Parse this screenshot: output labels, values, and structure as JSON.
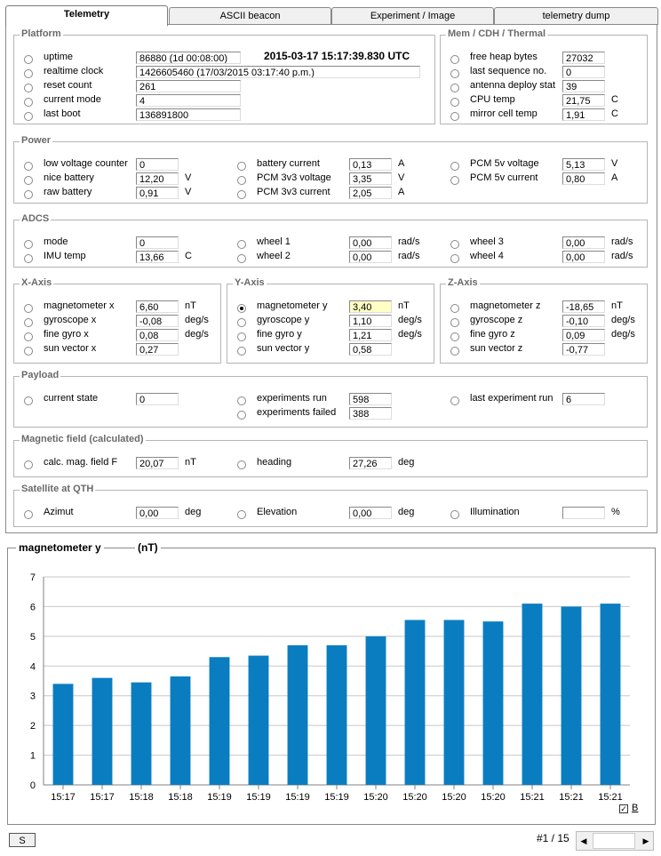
{
  "tabs": [
    "Telemetry",
    "ASCII beacon",
    "Experiment / Image",
    "telemetry dump"
  ],
  "platform": {
    "title": "Platform",
    "timestamp": "2015-03-17 15:17:39.830 UTC",
    "rows": [
      {
        "label": "uptime",
        "value": "86880  (1d 00:08:00)"
      },
      {
        "label": "realtime clock",
        "value": "1426605460  (17/03/2015 03:17:40 p.m.)"
      },
      {
        "label": "reset count",
        "value": "261"
      },
      {
        "label": "current mode",
        "value": "4"
      },
      {
        "label": "last boot",
        "value": "136891800"
      }
    ]
  },
  "mem": {
    "title": "Mem / CDH / Thermal",
    "rows": [
      {
        "label": "free heap bytes",
        "value": "27032",
        "unit": ""
      },
      {
        "label": "last sequence no.",
        "value": "0",
        "unit": ""
      },
      {
        "label": "antenna deploy stat",
        "value": "39",
        "unit": ""
      },
      {
        "label": "CPU temp",
        "value": "21,75",
        "unit": "C"
      },
      {
        "label": "mirror cell temp",
        "value": "1,91",
        "unit": "C"
      }
    ]
  },
  "power": {
    "title": "Power",
    "col1": [
      {
        "label": "low voltage counter",
        "value": "0",
        "unit": ""
      },
      {
        "label": "nice battery",
        "value": "12,20",
        "unit": "V"
      },
      {
        "label": "raw battery",
        "value": "0,91",
        "unit": "V"
      }
    ],
    "col2": [
      {
        "label": "battery current",
        "value": "0,13",
        "unit": "A"
      },
      {
        "label": "PCM 3v3 voltage",
        "value": "3,35",
        "unit": "V"
      },
      {
        "label": "PCM 3v3 current",
        "value": "2,05",
        "unit": "A"
      }
    ],
    "col3": [
      {
        "label": "PCM 5v voltage",
        "value": "5,13",
        "unit": "V"
      },
      {
        "label": "PCM 5v current",
        "value": "0,80",
        "unit": "A"
      }
    ]
  },
  "adcs": {
    "title": "ADCS",
    "col1": [
      {
        "label": "mode",
        "value": "0",
        "unit": ""
      },
      {
        "label": "IMU temp",
        "value": "13,66",
        "unit": "C"
      }
    ],
    "col2": [
      {
        "label": "wheel 1",
        "value": "0,00",
        "unit": "rad/s"
      },
      {
        "label": "wheel 2",
        "value": "0,00",
        "unit": "rad/s"
      }
    ],
    "col3": [
      {
        "label": "wheel 3",
        "value": "0,00",
        "unit": "rad/s"
      },
      {
        "label": "wheel 4",
        "value": "0,00",
        "unit": "rad/s"
      }
    ]
  },
  "xaxis": {
    "title": "X-Axis",
    "rows": [
      {
        "label": "magnetometer x",
        "value": "6,60",
        "unit": "nT"
      },
      {
        "label": "gyroscope x",
        "value": "-0,08",
        "unit": "deg/s"
      },
      {
        "label": "fine gyro x",
        "value": "0,08",
        "unit": "deg/s"
      },
      {
        "label": "sun vector x",
        "value": "0,27",
        "unit": ""
      }
    ]
  },
  "yaxis": {
    "title": "Y-Axis",
    "rows": [
      {
        "label": "magnetometer y",
        "value": "3,40",
        "unit": "nT"
      },
      {
        "label": "gyroscope y",
        "value": "1,10",
        "unit": "deg/s"
      },
      {
        "label": "fine gyro y",
        "value": "1,21",
        "unit": "deg/s"
      },
      {
        "label": "sun vector y",
        "value": "0,58",
        "unit": ""
      }
    ]
  },
  "zaxis": {
    "title": "Z-Axis",
    "rows": [
      {
        "label": "magnetometer z",
        "value": "-18,65",
        "unit": "nT"
      },
      {
        "label": "gyroscope z",
        "value": "-0,10",
        "unit": "deg/s"
      },
      {
        "label": "fine gyro z",
        "value": "0,09",
        "unit": "deg/s"
      },
      {
        "label": "sun vector z",
        "value": "-0,77",
        "unit": ""
      }
    ]
  },
  "payload": {
    "title": "Payload",
    "current_state": {
      "label": "current state",
      "value": "0"
    },
    "experiments_run": {
      "label": "experiments run",
      "value": "598"
    },
    "experiments_failed": {
      "label": "experiments failed",
      "value": "388"
    },
    "last_run": {
      "label": "last experiment run",
      "value": "6"
    }
  },
  "magfield": {
    "title": "Magnetic field (calculated)",
    "field": {
      "label": "calc. mag. field F",
      "value": "20,07",
      "unit": "nT"
    },
    "heading": {
      "label": "heading",
      "value": "27,26",
      "unit": "deg"
    }
  },
  "qth": {
    "title": "Satellite at QTH",
    "azimut": {
      "label": "Azimut",
      "value": "0,00",
      "unit": "deg"
    },
    "elevation": {
      "label": "Elevation",
      "value": "0,00",
      "unit": "deg"
    },
    "illumination": {
      "label": "Illumination",
      "value": "",
      "unit": "%"
    }
  },
  "chart_header": {
    "title": "magnetometer y",
    "unit": "(nT)"
  },
  "chart_data": {
    "type": "bar",
    "categories": [
      "15:17",
      "15:17",
      "15:18",
      "15:18",
      "15:19",
      "15:19",
      "15:19",
      "15:19",
      "15:20",
      "15:20",
      "15:20",
      "15:20",
      "15:21",
      "15:21",
      "15:21"
    ],
    "values": [
      3.4,
      3.6,
      3.45,
      3.65,
      4.3,
      4.35,
      4.7,
      4.7,
      5.0,
      5.55,
      5.55,
      5.5,
      6.1,
      6.0,
      6.1
    ],
    "ylim": [
      0,
      7
    ],
    "yticks": [
      0,
      1,
      2,
      3,
      4,
      5,
      6,
      7
    ],
    "grid": true,
    "bar_color": "#0a7dc1"
  },
  "footer": {
    "s_button": "S",
    "page": "#1 / 15",
    "checkbox_label": "B",
    "checkbox_mark": "✓",
    "scroll_left": "◀",
    "scroll_right": "▶"
  }
}
